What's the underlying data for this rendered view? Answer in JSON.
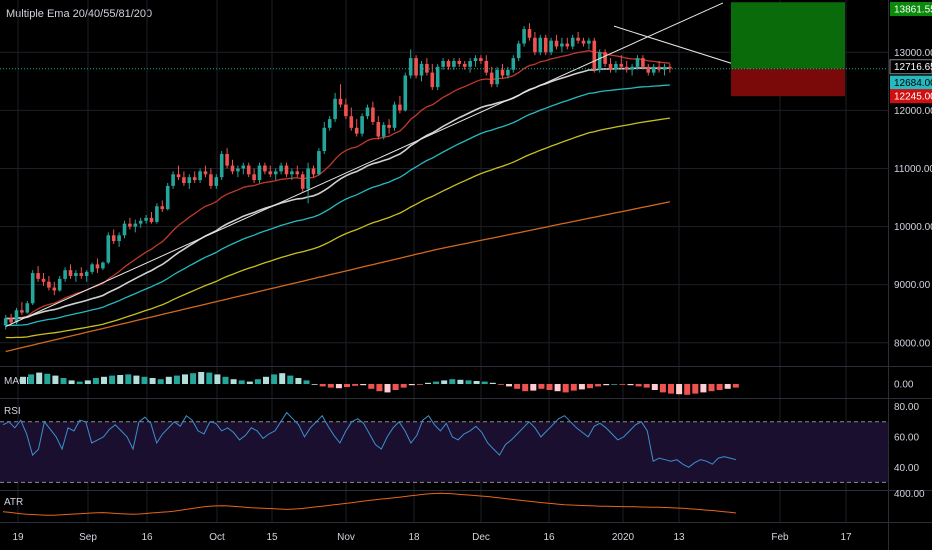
{
  "indicator_title": "Multiple Ema 20/40/55/81/200",
  "colors": {
    "background": "#000000",
    "grid": "#1c1f26",
    "axis_text": "#d1d4dc",
    "candle_up": "#26a69a",
    "candle_down": "#ef5350",
    "ema20": "#c0392b",
    "ema40": "#d0d0d0",
    "ema55": "#26b9c0",
    "ema81": "#c8c020",
    "ema200": "#d2691e",
    "rsi_line": "#3d8fd1",
    "rsi_band": "#1a0f2e",
    "atr_line": "#e8651a",
    "target_zone": "#0a6b0a",
    "stop_zone": "#7a0a0a"
  },
  "chart_data": [
    {
      "type": "candlestick",
      "title": "",
      "series_labels": [
        "EMA 20",
        "EMA 40",
        "EMA 55",
        "EMA 81",
        "EMA 200"
      ],
      "ylim": [
        7600,
        13900
      ],
      "y_ticks": [
        8000,
        9000,
        10000,
        11000,
        12000,
        13000
      ],
      "y_tick_labels": [
        "8000.00",
        "9000.00",
        "10000.00",
        "11000.00",
        "12000.00",
        "13000.00"
      ],
      "price_labels": [
        {
          "value": "13861.55",
          "kind": "target"
        },
        {
          "value": "12716.65",
          "kind": "last"
        },
        {
          "value": "12684.00",
          "kind": "ema"
        },
        {
          "value": "12245.00",
          "kind": "stop"
        }
      ],
      "position": {
        "entry": 12716.65,
        "target": 13861.55,
        "stop": 12245.0
      },
      "candles": [
        [
          8300,
          8480,
          8230,
          8420
        ],
        [
          8420,
          8500,
          8300,
          8350
        ],
        [
          8350,
          8600,
          8320,
          8560
        ],
        [
          8560,
          8700,
          8480,
          8520
        ],
        [
          8520,
          8720,
          8500,
          8680
        ],
        [
          8680,
          9250,
          8650,
          9200
        ],
        [
          9200,
          9320,
          9050,
          9100
        ],
        [
          9100,
          9200,
          8980,
          9050
        ],
        [
          9050,
          9150,
          8900,
          8950
        ],
        [
          8950,
          9050,
          8820,
          8900
        ],
        [
          8900,
          9150,
          8880,
          9100
        ],
        [
          9100,
          9300,
          9050,
          9250
        ],
        [
          9250,
          9350,
          9100,
          9150
        ],
        [
          9150,
          9250,
          9050,
          9200
        ],
        [
          9200,
          9300,
          9100,
          9150
        ],
        [
          9150,
          9250,
          9050,
          9220
        ],
        [
          9220,
          9380,
          9180,
          9350
        ],
        [
          9350,
          9450,
          9200,
          9280
        ],
        [
          9280,
          9400,
          9250,
          9380
        ],
        [
          9380,
          9900,
          9350,
          9850
        ],
        [
          9850,
          9950,
          9700,
          9750
        ],
        [
          9750,
          9900,
          9650,
          9850
        ],
        [
          9850,
          10100,
          9800,
          10050
        ],
        [
          10050,
          10150,
          9950,
          10000
        ],
        [
          10000,
          10120,
          9900,
          10050
        ],
        [
          10050,
          10150,
          9980,
          10100
        ],
        [
          10100,
          10200,
          10050,
          10150
        ],
        [
          10150,
          10250,
          10050,
          10080
        ],
        [
          10080,
          10400,
          10050,
          10350
        ],
        [
          10350,
          10450,
          10250,
          10300
        ],
        [
          10300,
          10750,
          10280,
          10700
        ],
        [
          10700,
          10950,
          10650,
          10900
        ],
        [
          10900,
          11050,
          10800,
          10850
        ],
        [
          10850,
          10950,
          10700,
          10750
        ],
        [
          10750,
          10900,
          10650,
          10850
        ],
        [
          10850,
          10950,
          10750,
          10800
        ],
        [
          10800,
          11000,
          10750,
          10950
        ],
        [
          10950,
          11050,
          10850,
          10900
        ],
        [
          10900,
          11000,
          10650,
          10700
        ],
        [
          10700,
          10900,
          10650,
          10850
        ],
        [
          10850,
          11300,
          10800,
          11250
        ],
        [
          11250,
          11350,
          11000,
          11050
        ],
        [
          11050,
          11150,
          10900,
          10950
        ],
        [
          10950,
          11050,
          10850,
          11000
        ],
        [
          11000,
          11100,
          10900,
          11050
        ],
        [
          11050,
          11100,
          10850,
          10900
        ],
        [
          10900,
          11000,
          10750,
          10800
        ],
        [
          10800,
          11100,
          10750,
          11050
        ],
        [
          11050,
          11100,
          10900,
          10950
        ],
        [
          10950,
          11050,
          10850,
          10900
        ],
        [
          10900,
          11000,
          10800,
          10950
        ],
        [
          10950,
          11100,
          10900,
          11050
        ],
        [
          11050,
          11100,
          10850,
          10900
        ],
        [
          10900,
          11000,
          10800,
          10950
        ],
        [
          10950,
          11050,
          10850,
          10900
        ],
        [
          10900,
          10950,
          10600,
          10650
        ],
        [
          10650,
          11100,
          10400,
          11000
        ],
        [
          11000,
          11050,
          10850,
          10900
        ],
        [
          10900,
          11350,
          10880,
          11300
        ],
        [
          11300,
          11800,
          11250,
          11700
        ],
        [
          11700,
          11900,
          11650,
          11850
        ],
        [
          11850,
          12300,
          11800,
          12200
        ],
        [
          12200,
          12450,
          12050,
          12100
        ],
        [
          12100,
          12200,
          11850,
          11900
        ],
        [
          11900,
          12050,
          11650,
          11700
        ],
        [
          11700,
          11850,
          11550,
          11600
        ],
        [
          11600,
          11950,
          11550,
          11900
        ],
        [
          11900,
          12100,
          11850,
          12050
        ],
        [
          12050,
          12150,
          11750,
          11800
        ],
        [
          11800,
          11900,
          11500,
          11550
        ],
        [
          11550,
          11800,
          11500,
          11750
        ],
        [
          11750,
          11850,
          11600,
          11700
        ],
        [
          11700,
          12150,
          11650,
          12100
        ],
        [
          12100,
          12250,
          11950,
          12000
        ],
        [
          12000,
          12650,
          11980,
          12600
        ],
        [
          12600,
          13050,
          12550,
          12900
        ],
        [
          12900,
          12950,
          12550,
          12600
        ],
        [
          12600,
          12850,
          12500,
          12800
        ],
        [
          12800,
          12900,
          12600,
          12650
        ],
        [
          12650,
          12800,
          12350,
          12400
        ],
        [
          12400,
          12800,
          12350,
          12750
        ],
        [
          12750,
          12900,
          12700,
          12850
        ],
        [
          12850,
          12880,
          12700,
          12750
        ],
        [
          12750,
          12900,
          12700,
          12850
        ],
        [
          12850,
          12900,
          12750,
          12800
        ],
        [
          12800,
          12850,
          12700,
          12750
        ],
        [
          12750,
          12900,
          12650,
          12850
        ],
        [
          12850,
          12950,
          12750,
          12900
        ],
        [
          12900,
          12950,
          12800,
          12850
        ],
        [
          12850,
          12950,
          12600,
          12650
        ],
        [
          12650,
          12750,
          12400,
          12450
        ],
        [
          12450,
          12750,
          12400,
          12700
        ],
        [
          12700,
          12800,
          12550,
          12600
        ],
        [
          12600,
          12750,
          12550,
          12700
        ],
        [
          12700,
          12950,
          12650,
          12900
        ],
        [
          12900,
          13200,
          12850,
          13150
        ],
        [
          13150,
          13450,
          13100,
          13400
        ],
        [
          13400,
          13500,
          13200,
          13250
        ],
        [
          13250,
          13350,
          12950,
          13000
        ],
        [
          13000,
          13300,
          12950,
          13250
        ],
        [
          13250,
          13300,
          12950,
          13000
        ],
        [
          13000,
          13250,
          12950,
          13200
        ],
        [
          13200,
          13300,
          13050,
          13100
        ],
        [
          13100,
          13250,
          13000,
          13150
        ],
        [
          13150,
          13250,
          13050,
          13100
        ],
        [
          13100,
          13300,
          13050,
          13250
        ],
        [
          13250,
          13350,
          13150,
          13200
        ],
        [
          13200,
          13250,
          13100,
          13150
        ],
        [
          13150,
          13250,
          13050,
          13200
        ],
        [
          13200,
          13250,
          12650,
          12700
        ],
        [
          12700,
          13050,
          12650,
          13000
        ],
        [
          13000,
          13050,
          12750,
          12800
        ],
        [
          12800,
          12900,
          12650,
          12700
        ],
        [
          12700,
          12850,
          12650,
          12800
        ],
        [
          12800,
          12950,
          12700,
          12750
        ],
        [
          12750,
          12850,
          12650,
          12700
        ],
        [
          12700,
          12800,
          12600,
          12750
        ],
        [
          12750,
          12950,
          12700,
          12900
        ],
        [
          12900,
          12950,
          12700,
          12750
        ],
        [
          12750,
          12800,
          12600,
          12650
        ],
        [
          12650,
          12800,
          12600,
          12750
        ],
        [
          12750,
          12850,
          12650,
          12700
        ],
        [
          12700,
          12800,
          12600,
          12750
        ],
        [
          12750,
          12800,
          12650,
          12720
        ]
      ]
    },
    {
      "type": "bar",
      "label": "MACD",
      "y_tick_labels": [
        "0.00"
      ],
      "values": [
        60,
        80,
        95,
        85,
        70,
        50,
        30,
        20,
        30,
        50,
        60,
        70,
        75,
        80,
        70,
        60,
        50,
        40,
        60,
        70,
        80,
        90,
        100,
        95,
        80,
        60,
        40,
        30,
        20,
        40,
        60,
        80,
        90,
        70,
        50,
        30,
        0,
        -20,
        -30,
        -35,
        -25,
        -15,
        -10,
        -40,
        -60,
        -70,
        -50,
        -30,
        -10,
        -5,
        10,
        20,
        30,
        40,
        35,
        30,
        25,
        20,
        10,
        -5,
        -20,
        -40,
        -60,
        -55,
        -40,
        -50,
        -60,
        -70,
        -55,
        -45,
        -35,
        -20,
        -10,
        0,
        -5,
        -10,
        -20,
        -30,
        -50,
        -70,
        -80,
        -85,
        -90,
        -80,
        -70,
        -60,
        -50,
        -40,
        -30
      ]
    },
    {
      "type": "line",
      "label": "RSI",
      "y_tick_labels": [
        "80.00",
        "60.00",
        "40.00"
      ],
      "ylim": [
        25,
        85
      ],
      "bands": [
        70,
        30
      ],
      "values": [
        68,
        70,
        66,
        71,
        62,
        48,
        52,
        70,
        65,
        60,
        52,
        66,
        64,
        71,
        70,
        56,
        58,
        60,
        65,
        68,
        64,
        60,
        52,
        70,
        73,
        69,
        56,
        62,
        66,
        70,
        67,
        74,
        71,
        64,
        62,
        70,
        69,
        64,
        66,
        63,
        58,
        61,
        66,
        64,
        59,
        62,
        64,
        70,
        76,
        72,
        68,
        60,
        66,
        70,
        74,
        67,
        61,
        56,
        64,
        70,
        72,
        69,
        62,
        55,
        52,
        60,
        66,
        70,
        64,
        56,
        61,
        71,
        74,
        68,
        64,
        69,
        60,
        58,
        62,
        64,
        67,
        63,
        56,
        52,
        48,
        55,
        58,
        62,
        66,
        70,
        66,
        60,
        64,
        68,
        72,
        74,
        70,
        66,
        63,
        60,
        67,
        69,
        66,
        62,
        58,
        60,
        64,
        68,
        70,
        64,
        44,
        46,
        45,
        44,
        45,
        42,
        40,
        43,
        45,
        44,
        42,
        46,
        47,
        46,
        45
      ]
    },
    {
      "type": "line",
      "label": "ATR",
      "y_tick_labels": [
        "400.00"
      ],
      "ylim": [
        150,
        420
      ],
      "values": [
        240,
        235,
        228,
        222,
        218,
        215,
        212,
        210,
        208,
        210,
        213,
        216,
        220,
        222,
        225,
        228,
        230,
        232,
        228,
        225,
        222,
        220,
        218,
        220,
        223,
        228,
        232,
        236,
        240,
        245,
        252,
        260,
        268,
        275,
        282,
        288,
        290,
        292,
        290,
        286,
        282,
        278,
        274,
        272,
        270,
        268,
        265,
        262,
        260,
        262,
        265,
        270,
        276,
        282,
        288,
        294,
        300,
        306,
        312,
        318,
        325,
        332,
        338,
        344,
        350,
        355,
        360,
        366,
        372,
        378,
        384,
        390,
        395,
        398,
        400,
        398,
        396,
        392,
        388,
        384,
        380,
        376,
        372,
        366,
        360,
        354,
        348,
        342,
        336,
        330,
        325,
        320,
        315,
        310,
        305,
        300,
        298,
        296,
        294,
        292,
        290,
        288,
        287,
        286,
        285,
        284,
        283,
        282,
        281,
        280,
        279,
        278,
        276,
        274,
        272,
        270,
        266,
        262,
        258,
        254,
        250,
        245,
        240,
        235,
        228
      ]
    }
  ],
  "x_axis_labels": [
    "19",
    "Sep",
    "16",
    "Oct",
    "15",
    "Nov",
    "18",
    "Dec",
    "16",
    "2020",
    "13",
    "Feb",
    "17"
  ]
}
